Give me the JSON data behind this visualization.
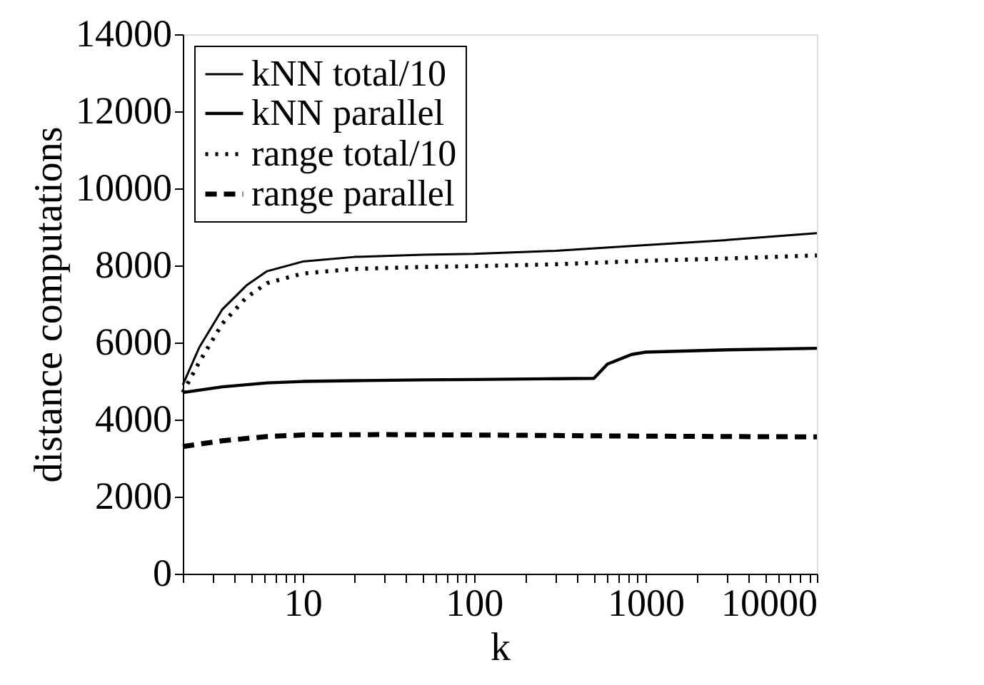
{
  "chart_data": {
    "type": "line",
    "xlabel": "k",
    "ylabel": "distance computations",
    "log": "x",
    "grid": false,
    "legend": "top left",
    "marker": "none",
    "xlim": [
      2,
      10000
    ],
    "ylim": [
      0,
      14000
    ],
    "yticks": [
      0,
      2000,
      4000,
      6000,
      8000,
      10000,
      12000,
      14000
    ],
    "xticks": [
      {
        "value": 2,
        "label": null
      },
      {
        "value": 3,
        "label": null
      },
      {
        "value": 4,
        "label": null
      },
      {
        "value": 5,
        "label": null
      },
      {
        "value": 6,
        "label": null
      },
      {
        "value": 7,
        "label": null
      },
      {
        "value": 8,
        "label": null
      },
      {
        "value": 9,
        "label": null
      },
      10,
      {
        "value": 20,
        "label": null
      },
      {
        "value": 30,
        "label": null
      },
      {
        "value": 40,
        "label": null
      },
      {
        "value": 50,
        "label": null
      },
      {
        "value": 60,
        "label": null
      },
      {
        "value": 70,
        "label": null
      },
      {
        "value": 80,
        "label": null
      },
      {
        "value": 90,
        "label": null
      },
      100,
      {
        "value": 200,
        "label": null
      },
      {
        "value": 300,
        "label": null
      },
      {
        "value": 400,
        "label": null
      },
      {
        "value": 500,
        "label": null
      },
      {
        "value": 600,
        "label": null
      },
      {
        "value": 700,
        "label": null
      },
      {
        "value": 800,
        "label": null
      },
      {
        "value": 900,
        "label": null
      },
      1000,
      {
        "value": 2000,
        "label": null
      },
      {
        "value": 3000,
        "label": null
      },
      {
        "value": 4000,
        "label": null
      },
      {
        "value": 5000,
        "label": null
      },
      {
        "value": 6000,
        "label": null
      },
      {
        "value": 7000,
        "label": null
      },
      {
        "value": 8000,
        "label": null
      },
      {
        "value": 9000,
        "label": null
      },
      10000
    ],
    "series": [
      {
        "name": "kNN total/10",
        "color": "#000000",
        "line_style": "solid",
        "x": [
          2,
          2.5,
          3.4,
          4.7,
          6.2,
          10,
          20,
          50,
          100,
          300,
          1000,
          3000,
          10000
        ],
        "values": [
          4900,
          5880,
          6860,
          7480,
          7850,
          8100,
          8220,
          8280,
          8300,
          8380,
          8530,
          8660,
          8840
        ]
      },
      {
        "name": "kNN parallel",
        "color": "#000000",
        "line_style": "solid",
        "x": [
          2,
          3.4,
          6.2,
          10,
          20,
          50,
          100,
          300,
          500,
          600,
          830,
          1000,
          3000,
          10000
        ],
        "values": [
          4700,
          4850,
          4950,
          4990,
          5010,
          5030,
          5040,
          5060,
          5070,
          5440,
          5690,
          5750,
          5810,
          5850
        ]
      },
      {
        "name": "range total/10",
        "color": "#000000",
        "line_style": "dotted",
        "x": [
          2,
          2.5,
          3.4,
          4.7,
          6.2,
          10,
          20,
          50,
          100,
          300,
          1000,
          3000,
          10000
        ],
        "values": [
          4700,
          5500,
          6490,
          7170,
          7540,
          7790,
          7910,
          7960,
          7980,
          8030,
          8120,
          8180,
          8260
        ]
      },
      {
        "name": "range parallel",
        "color": "#000000",
        "line_style": "dashed",
        "x": [
          2,
          3.4,
          6.2,
          10,
          30,
          100,
          1000,
          10000
        ],
        "values": [
          3300,
          3450,
          3560,
          3600,
          3610,
          3600,
          3570,
          3550
        ]
      }
    ]
  }
}
